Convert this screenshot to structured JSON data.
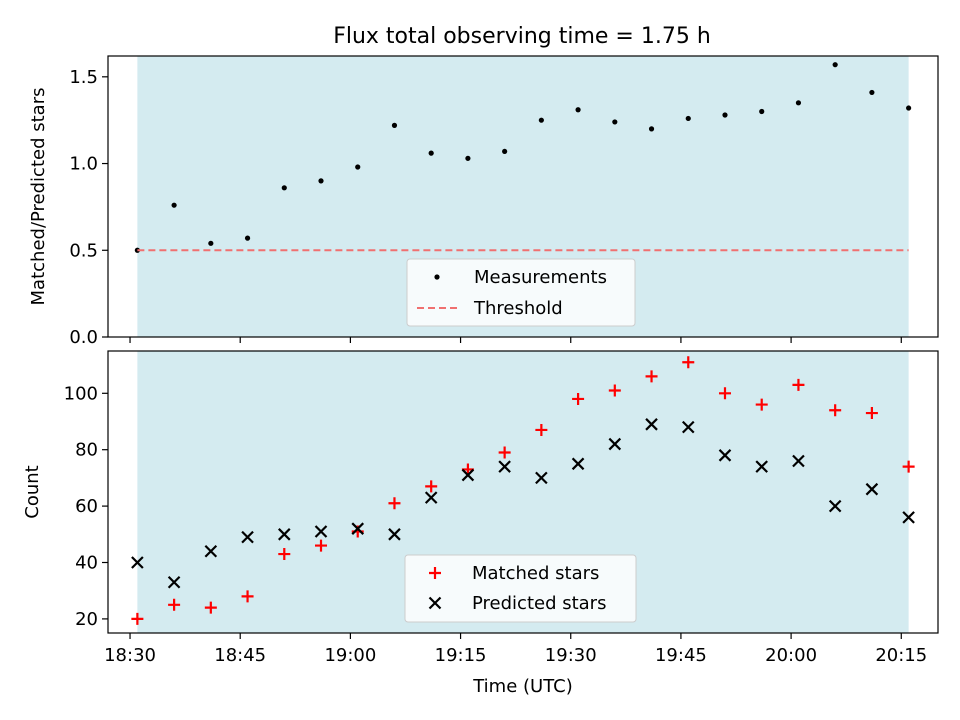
{
  "title": "Flux total observing time = 1.75 h",
  "chart_data": [
    {
      "type": "scatter",
      "ylabel": "Matched/Predicted stars",
      "xlabel": "",
      "ylim": [
        0,
        1.62
      ],
      "yticks": [
        "0.0",
        "0.5",
        "1.0",
        "1.5"
      ],
      "shaded_interval": [
        "18:31",
        "20:16"
      ],
      "shade_color": "#d4ebf0",
      "legend_position": "lower center",
      "series": [
        {
          "name": "Measurements",
          "marker": "dot",
          "color": "#000000",
          "x": [
            "18:31",
            "18:36",
            "18:41",
            "18:46",
            "18:51",
            "18:56",
            "19:01",
            "19:06",
            "19:11",
            "19:16",
            "19:21",
            "19:26",
            "19:31",
            "19:36",
            "19:41",
            "19:46",
            "19:51",
            "19:56",
            "20:01",
            "20:06",
            "20:11",
            "20:16"
          ],
          "y": [
            0.5,
            0.76,
            0.54,
            0.57,
            0.86,
            0.9,
            0.98,
            1.22,
            1.06,
            1.03,
            1.07,
            1.25,
            1.31,
            1.24,
            1.2,
            1.26,
            1.28,
            1.3,
            1.35,
            1.57,
            1.41,
            1.32
          ]
        },
        {
          "name": "Threshold",
          "marker": "dashed-line",
          "color": "#f07070",
          "x": [
            "18:31",
            "20:16"
          ],
          "y": [
            0.5,
            0.5
          ]
        }
      ]
    },
    {
      "type": "scatter",
      "ylabel": "Count",
      "xlabel": "Time (UTC)",
      "ylim": [
        15,
        115
      ],
      "yticks": [
        "20",
        "40",
        "60",
        "80",
        "100"
      ],
      "xticks": [
        "18:30",
        "18:45",
        "19:00",
        "19:15",
        "19:30",
        "19:45",
        "20:00",
        "20:15"
      ],
      "shaded_interval": [
        "18:31",
        "20:16"
      ],
      "shade_color": "#d4ebf0",
      "legend_position": "lower center",
      "series": [
        {
          "name": "Matched stars",
          "marker": "plus",
          "color": "#ff0000",
          "x": [
            "18:31",
            "18:36",
            "18:41",
            "18:46",
            "18:51",
            "18:56",
            "19:01",
            "19:06",
            "19:11",
            "19:16",
            "19:21",
            "19:26",
            "19:31",
            "19:36",
            "19:41",
            "19:46",
            "19:51",
            "19:56",
            "20:01",
            "20:06",
            "20:11",
            "20:16"
          ],
          "y": [
            20,
            25,
            24,
            28,
            43,
            46,
            51,
            61,
            67,
            73,
            79,
            87,
            98,
            101,
            106,
            111,
            100,
            96,
            103,
            94,
            93,
            74
          ]
        },
        {
          "name": "Predicted stars",
          "marker": "x",
          "color": "#000000",
          "x": [
            "18:31",
            "18:36",
            "18:41",
            "18:46",
            "18:51",
            "18:56",
            "19:01",
            "19:06",
            "19:11",
            "19:16",
            "19:21",
            "19:26",
            "19:31",
            "19:36",
            "19:41",
            "19:46",
            "19:51",
            "19:56",
            "20:01",
            "20:06",
            "20:11",
            "20:16"
          ],
          "y": [
            40,
            33,
            44,
            49,
            50,
            51,
            52,
            50,
            63,
            71,
            74,
            70,
            75,
            82,
            89,
            88,
            78,
            74,
            76,
            60,
            66,
            56
          ]
        }
      ]
    }
  ]
}
